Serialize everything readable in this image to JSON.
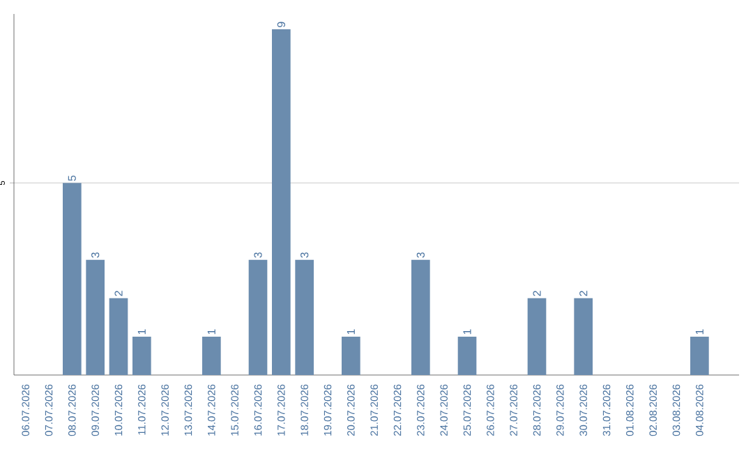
{
  "chart_data": {
    "type": "bar",
    "categories": [
      "06.07.2026",
      "07.07.2026",
      "08.07.2026",
      "09.07.2026",
      "10.07.2026",
      "11.07.2026",
      "12.07.2026",
      "13.07.2026",
      "14.07.2026",
      "15.07.2026",
      "16.07.2026",
      "17.07.2026",
      "18.07.2026",
      "19.07.2026",
      "20.07.2026",
      "21.07.2026",
      "22.07.2026",
      "23.07.2026",
      "24.07.2026",
      "25.07.2026",
      "26.07.2026",
      "27.07.2026",
      "28.07.2026",
      "29.07.2026",
      "30.07.2026",
      "31.07.2026",
      "01.08.2026",
      "02.08.2026",
      "03.08.2026",
      "04.08.2026"
    ],
    "values": [
      0,
      0,
      5,
      3,
      2,
      1,
      0,
      0,
      1,
      0,
      3,
      9,
      3,
      0,
      1,
      0,
      0,
      3,
      0,
      1,
      0,
      0,
      2,
      0,
      2,
      0,
      0,
      0,
      0,
      1
    ],
    "value_labels": [
      null,
      null,
      "5",
      "3",
      "2",
      "1",
      null,
      null,
      "1",
      null,
      "3",
      "9",
      "3",
      null,
      "1",
      null,
      null,
      "3",
      null,
      "1",
      null,
      null,
      "2",
      null,
      "2",
      null,
      null,
      null,
      null,
      "1"
    ],
    "color": "#6b8cae",
    "ylim": [
      0,
      9.4
    ],
    "yticks": [
      5
    ],
    "grid": "y"
  }
}
